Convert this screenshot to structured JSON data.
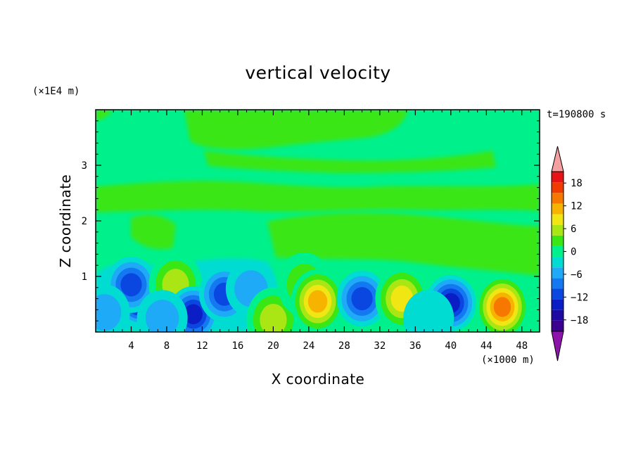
{
  "chart_data": {
    "type": "heatmap",
    "title": "vertical velocity",
    "time_label": "t=190800 s",
    "xlabel": "X coordinate",
    "ylabel": "Z coordinate",
    "x_unit": "(×1000 m)",
    "y_unit": "(×1E4 m)",
    "xlim": [
      0,
      50
    ],
    "ylim": [
      0,
      4
    ],
    "x_ticks": [
      4,
      8,
      12,
      16,
      20,
      24,
      28,
      32,
      36,
      40,
      44,
      48
    ],
    "y_ticks": [
      1,
      2,
      3
    ],
    "colorbar": {
      "levels": [
        -21,
        -18,
        -15,
        -12,
        -9,
        -6,
        -3,
        0,
        3,
        6,
        9,
        12,
        15,
        18,
        21
      ],
      "labels": [
        18,
        12,
        6,
        0,
        -6,
        -12,
        -18
      ],
      "colors": [
        "#3c0090",
        "#1e0aa0",
        "#0b1ec6",
        "#0a46e0",
        "#1478f0",
        "#1eaaf6",
        "#00dcd2",
        "#00f08c",
        "#3ae614",
        "#aae614",
        "#f0e614",
        "#f6b400",
        "#f67800",
        "#f03c00",
        "#e61414"
      ],
      "under_color": "#8c14aa",
      "over_color": "#f4a0a0"
    },
    "features": [
      {
        "x": 5.0,
        "z": 0.62,
        "w": -19
      },
      {
        "x": 4.0,
        "z": 0.85,
        "w": -12
      },
      {
        "x": 9.0,
        "z": 0.85,
        "w": 9
      },
      {
        "x": 11.0,
        "z": 0.32,
        "w": -14
      },
      {
        "x": 14.5,
        "z": 0.68,
        "w": -11
      },
      {
        "x": 17.5,
        "z": 0.78,
        "w": -5
      },
      {
        "x": 20.0,
        "z": 0.22,
        "w": 9
      },
      {
        "x": 23.5,
        "z": 0.85,
        "w": 6
      },
      {
        "x": 25.0,
        "z": 0.55,
        "w": 13
      },
      {
        "x": 30.0,
        "z": 0.6,
        "w": -11
      },
      {
        "x": 34.5,
        "z": 0.6,
        "w": 12
      },
      {
        "x": 40.0,
        "z": 0.52,
        "w": -14
      },
      {
        "x": 45.8,
        "z": 0.45,
        "w": 17
      },
      {
        "x": 1.0,
        "z": 0.35,
        "w": -4
      },
      {
        "x": 7.5,
        "z": 0.25,
        "w": -5
      },
      {
        "x": 37.5,
        "z": 0.25,
        "w": -3
      }
    ]
  }
}
